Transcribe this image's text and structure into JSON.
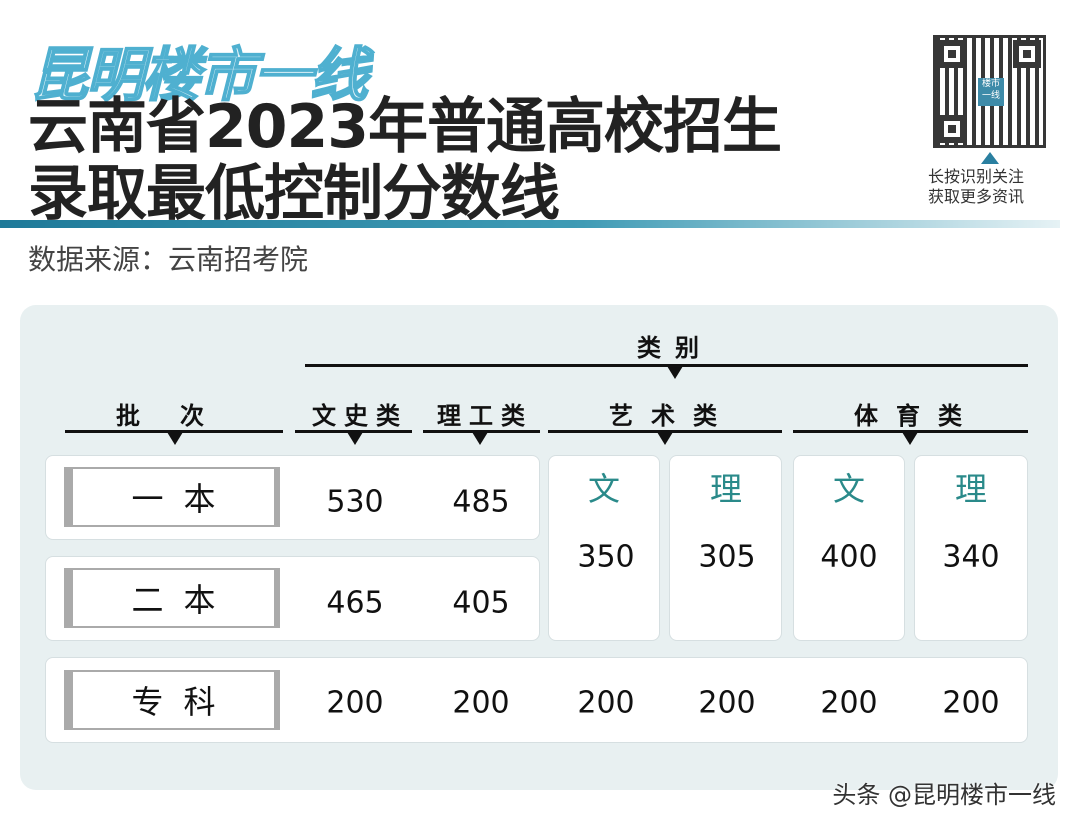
{
  "header": {
    "logo": "昆明楼市一线",
    "title_line1": "云南省2023年普通高校招生",
    "title_line2": "录取最低控制分数线",
    "source": "数据来源：云南招考院"
  },
  "qr": {
    "center_text": "楼市一线",
    "caption_line1": "长按识别关注",
    "caption_line2": "获取更多资讯"
  },
  "table": {
    "category_header": "类别",
    "batch_header": "批次",
    "columns": [
      "文史类",
      "理工类",
      "艺术类",
      "体育类"
    ],
    "sub_columns": {
      "art": [
        "文",
        "理"
      ],
      "sports": [
        "文",
        "理"
      ]
    },
    "rows": [
      {
        "batch": "一本",
        "wenshi": "530",
        "ligong": "485"
      },
      {
        "batch": "二本",
        "wenshi": "465",
        "ligong": "405"
      },
      {
        "batch": "专科",
        "wenshi": "200",
        "ligong": "200",
        "art_wen": "200",
        "art_li": "200",
        "sports_wen": "200",
        "sports_li": "200"
      }
    ],
    "merged_benke": {
      "art_wen": "350",
      "art_li": "305",
      "sports_wen": "400",
      "sports_li": "340"
    }
  },
  "footer": {
    "credit": "头条 @昆明楼市一线"
  },
  "colors": {
    "accent": "#1f7a99",
    "teal_text": "#2a8a8a",
    "panel_bg": "#e8f0f1"
  }
}
